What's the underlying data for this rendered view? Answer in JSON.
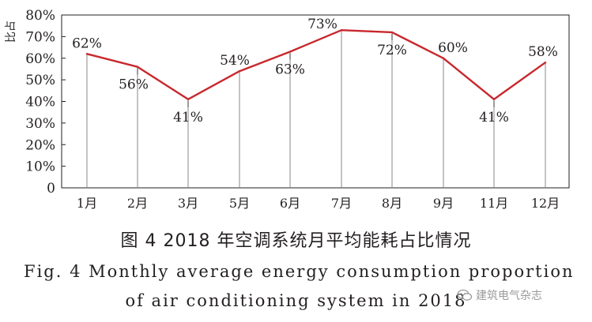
{
  "chart_data": {
    "type": "line",
    "categories": [
      "1月",
      "2月",
      "3月",
      "5月",
      "6月",
      "7月",
      "8月",
      "9月",
      "11月",
      "12月"
    ],
    "values": [
      62,
      56,
      41,
      54,
      63,
      73,
      72,
      60,
      41,
      58
    ],
    "data_labels": [
      "62%",
      "56%",
      "41%",
      "54%",
      "63%",
      "73%",
      "72%",
      "60%",
      "41%",
      "58%"
    ],
    "ylabel": "比占",
    "ylim": [
      0,
      80
    ],
    "yticks": [
      0,
      10,
      20,
      30,
      40,
      50,
      60,
      70,
      80
    ],
    "ytick_labels": [
      "0",
      "10%",
      "20%",
      "30%",
      "40%",
      "50%",
      "60%",
      "70%",
      "80%"
    ],
    "line_color": "#c8282d",
    "grid": false,
    "drop_lines": true
  },
  "caption": {
    "cn": "图 4   2018 年空调系统月平均能耗占比情况",
    "en_line1": "Fig. 4   Monthly average energy consumption proportion",
    "en_line2": "of air conditioning system in 2018"
  },
  "watermark": {
    "text": "建筑电气杂志",
    "icon": "wechat-icon"
  }
}
